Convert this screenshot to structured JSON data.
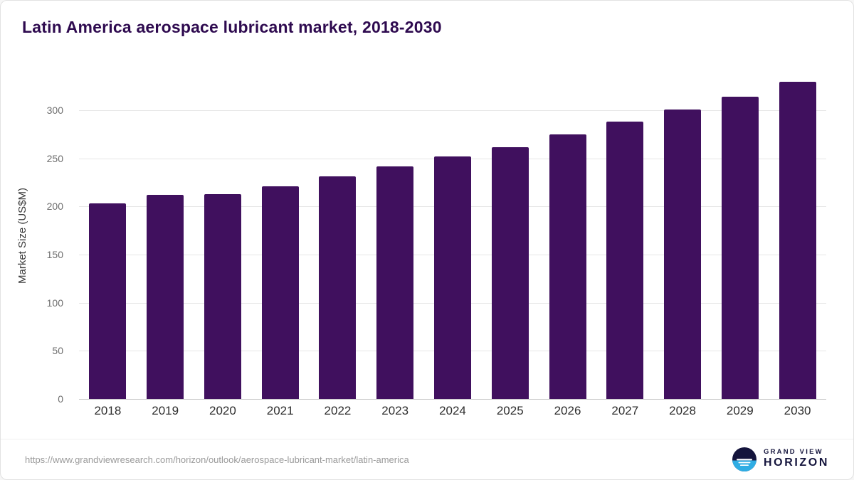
{
  "header": {
    "title": "Latin America aerospace lubricant market, 2018-2030"
  },
  "chart_data": {
    "type": "bar",
    "title": "Latin America aerospace lubricant market, 2018-2030",
    "categories": [
      "2018",
      "2019",
      "2020",
      "2021",
      "2022",
      "2023",
      "2024",
      "2025",
      "2026",
      "2027",
      "2028",
      "2029",
      "2030"
    ],
    "values": [
      203,
      212,
      213,
      221,
      231,
      242,
      252,
      262,
      275,
      288,
      301,
      314,
      330
    ],
    "xlabel": "",
    "ylabel": "Market Size (US$M)",
    "ylim": [
      0,
      340
    ],
    "yticks": [
      0,
      50,
      100,
      150,
      200,
      250,
      300
    ],
    "grid": "horizontal",
    "legend": "none",
    "bar_color": "#40105e"
  },
  "footer": {
    "source_url": "https://www.grandviewresearch.com/horizon/outlook/aerospace-lubricant-market/latin-america",
    "logo": {
      "line1": "GRAND VIEW",
      "line2": "HORIZON"
    }
  },
  "colors": {
    "title_text": "#2e0a4f",
    "bar": "#40105e",
    "gridline": "#e6e6e6",
    "axis_line": "#c6c6c6",
    "logo_navy": "#14143c",
    "logo_blue": "#2fade4"
  }
}
